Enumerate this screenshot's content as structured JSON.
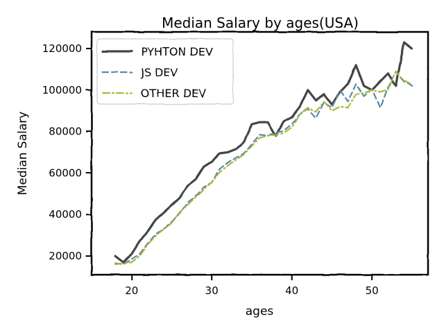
{
  "chart_data": {
    "type": "line",
    "title": "Median Salary by ages(USA)",
    "xlabel": "ages",
    "ylabel": "Median Salary",
    "xlim": [
      15,
      57
    ],
    "ylim": [
      11000,
      128000
    ],
    "xticks": [
      20,
      30,
      40,
      50
    ],
    "yticks": [
      20000,
      40000,
      60000,
      80000,
      100000,
      120000
    ],
    "grid": false,
    "legend_position": "top-left",
    "x": [
      18,
      19,
      20,
      21,
      22,
      23,
      24,
      25,
      26,
      27,
      28,
      29,
      30,
      31,
      32,
      33,
      34,
      35,
      36,
      37,
      38,
      39,
      40,
      41,
      42,
      43,
      44,
      45,
      46,
      47,
      48,
      49,
      50,
      51,
      52,
      53,
      54,
      55
    ],
    "series": [
      {
        "name": "PYHTON DEV",
        "color": "#444444",
        "dash": "solid",
        "values": [
          20000,
          17000,
          21000,
          27000,
          32000,
          37500,
          41000,
          44500,
          48000,
          54000,
          57000,
          63000,
          65500,
          69500,
          70000,
          71500,
          75000,
          83500,
          84500,
          84500,
          78000,
          85000,
          87000,
          92000,
          100000,
          95000,
          98000,
          93000,
          99000,
          103000,
          112000,
          102000,
          100000,
          104000,
          108000,
          102000,
          123000,
          120000
        ]
      },
      {
        "name": "JS DEV",
        "color": "#5a88a8",
        "dash": "dashed",
        "values": [
          16500,
          16000,
          18500,
          21000,
          26000,
          30500,
          33000,
          36500,
          40500,
          46000,
          49000,
          53000,
          55500,
          62000,
          65000,
          67500,
          69500,
          74000,
          78500,
          78000,
          79500,
          80500,
          83500,
          88500,
          91000,
          86500,
          94000,
          91500,
          100000,
          94500,
          103000,
          97000,
          100500,
          91500,
          101000,
          109000,
          104000,
          102000
        ]
      },
      {
        "name": "OTHER DEV",
        "color": "#aab834",
        "dash": "dashdot",
        "values": [
          16000,
          16500,
          17000,
          20000,
          25500,
          29500,
          33000,
          36000,
          41000,
          45000,
          48500,
          52000,
          55500,
          60500,
          63500,
          66500,
          69000,
          73000,
          77000,
          78000,
          78500,
          79500,
          82000,
          88500,
          91500,
          89500,
          94500,
          90000,
          92000,
          91500,
          98000,
          98500,
          100000,
          99000,
          100000,
          109000,
          104500,
          102500
        ]
      }
    ]
  }
}
